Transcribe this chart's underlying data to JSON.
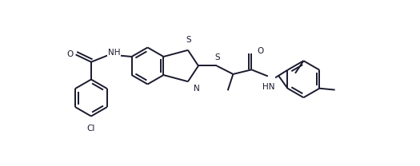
{
  "bg_color": "#ffffff",
  "line_color": "#1a1a2e",
  "text_color": "#1a1a2e",
  "line_width": 1.4,
  "font_size": 7.5,
  "figsize": [
    5.25,
    2.08
  ],
  "dpi": 100,
  "xlim": [
    -1.5,
    11.5
  ],
  "ylim": [
    -1.8,
    3.8
  ]
}
